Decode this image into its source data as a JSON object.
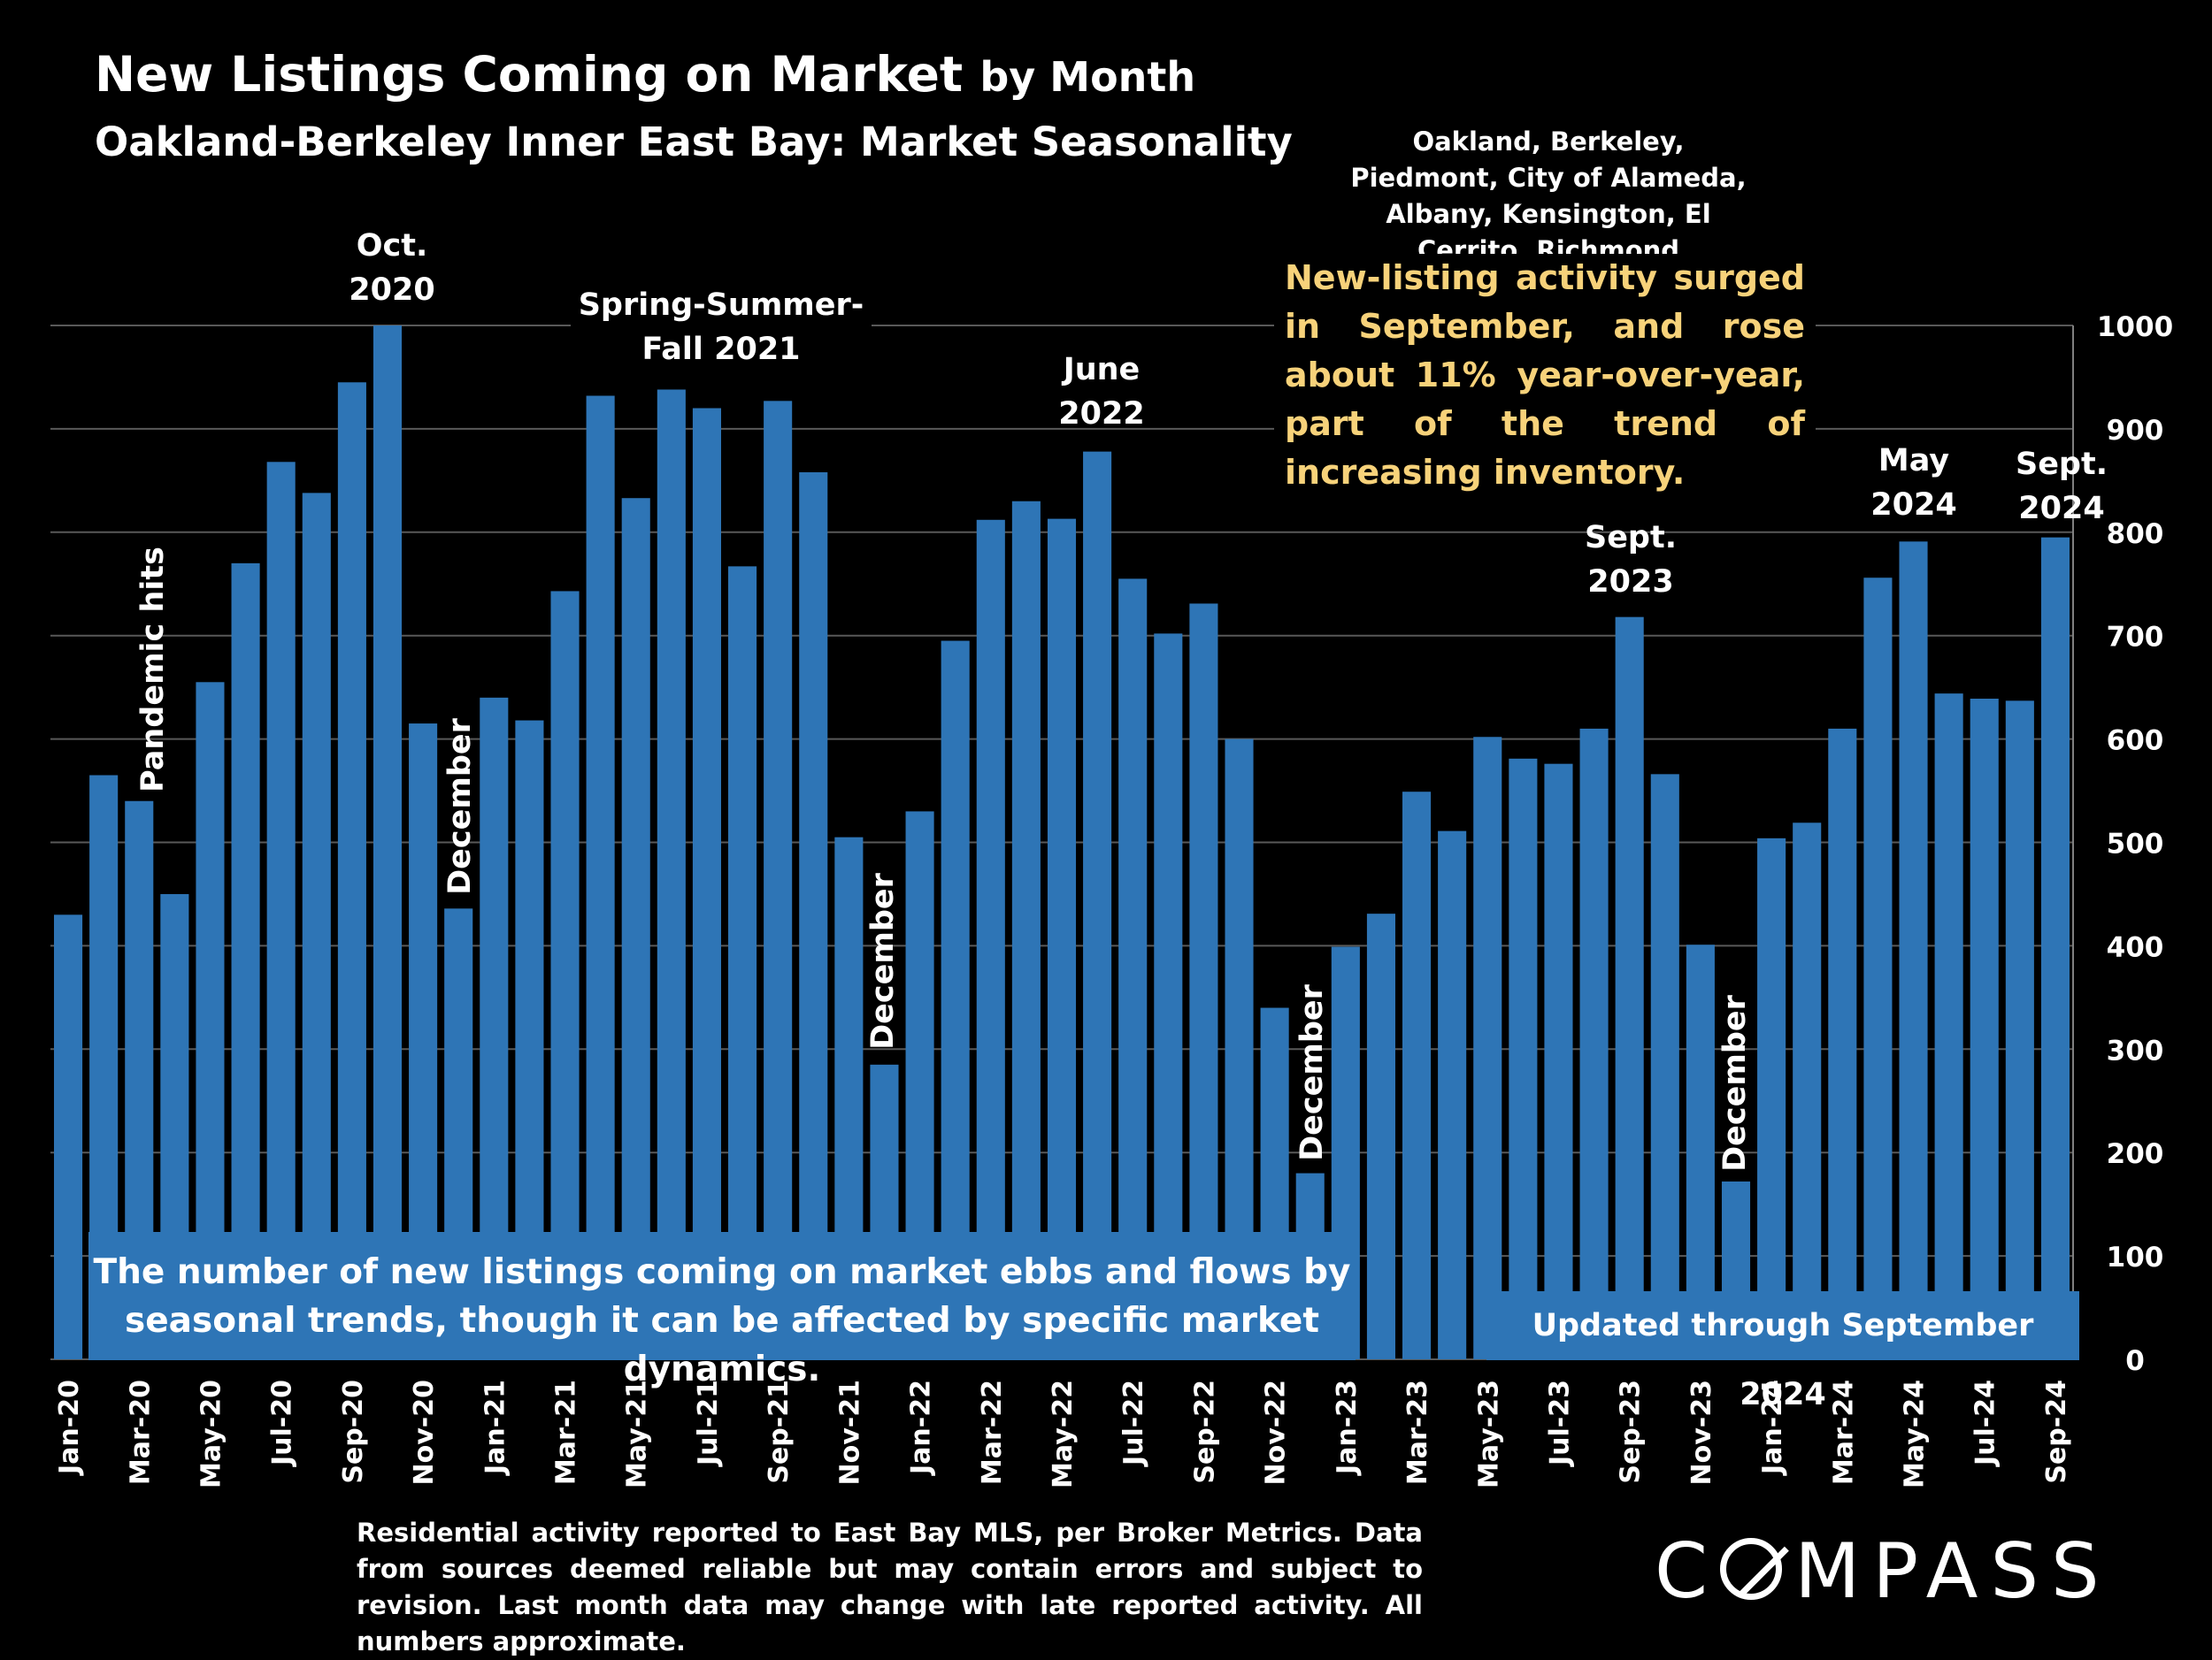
{
  "header": {
    "title_main": "New Listings Coming on Market",
    "title_suffix": "by Month",
    "subtitle": "Oakland-Berkeley Inner East Bay: Market Seasonality",
    "areas_line1": "Oakland, Berkeley, Piedmont, City of Alameda,",
    "areas_line2": "Albany, Kensington, El Cerrito, Richmond"
  },
  "commentary": "New-listing activity surged in September, and rose about 11% year-over-year, part of the trend of increasing inventory.",
  "note_box": {
    "line1": "The number of new listings coming on market ebbs and flows by",
    "line2": "seasonal trends, though it can be affected by specific market dynamics."
  },
  "updated": "Updated through September 2024",
  "footnote": "Residential activity reported to East Bay MLS, per Broker Metrics. Data from sources deemed reliable but may contain errors and subject to revision. Last month data may change with late reported activity. All numbers approximate.",
  "logo": {
    "text": "COMPASS"
  },
  "colors": {
    "bar": "#2e75b6",
    "commentary": "#f7d27a",
    "background": "#000000",
    "grid": "#595959"
  },
  "annotations": {
    "oct2020": [
      "Oct.",
      "2020"
    ],
    "ssf2021": [
      "Spring-Summer-",
      "Fall  2021"
    ],
    "june2022": [
      "June",
      "2022"
    ],
    "sept2023": [
      "Sept.",
      "2023"
    ],
    "may2024": [
      "May",
      "2024"
    ],
    "sept2024": [
      "Sept.",
      "2024"
    ],
    "pandemic": "Pandemic hits",
    "december": "December"
  },
  "chart_data": {
    "type": "bar",
    "categories": [
      "Jan-20",
      "Feb-20",
      "Mar-20",
      "Apr-20",
      "May-20",
      "Jun-20",
      "Jul-20",
      "Aug-20",
      "Sep-20",
      "Oct-20",
      "Nov-20",
      "Dec-20",
      "Jan-21",
      "Feb-21",
      "Mar-21",
      "Apr-21",
      "May-21",
      "Jun-21",
      "Jul-21",
      "Aug-21",
      "Sep-21",
      "Oct-21",
      "Nov-21",
      "Dec-21",
      "Jan-22",
      "Feb-22",
      "Mar-22",
      "Apr-22",
      "May-22",
      "Jun-22",
      "Jul-22",
      "Aug-22",
      "Sep-22",
      "Oct-22",
      "Nov-22",
      "Dec-22",
      "Jan-23",
      "Feb-23",
      "Mar-23",
      "Apr-23",
      "May-23",
      "Jun-23",
      "Jul-23",
      "Aug-23",
      "Sep-23",
      "Oct-23",
      "Nov-23",
      "Dec-23",
      "Jan-24",
      "Feb-24",
      "Mar-24",
      "Apr-24",
      "May-24",
      "Jun-24",
      "Jul-24",
      "Aug-24",
      "Sep-24"
    ],
    "x_tick_labels": [
      "Jan-20",
      "Mar-20",
      "May-20",
      "Jul-20",
      "Sep-20",
      "Nov-20",
      "Jan-21",
      "Mar-21",
      "May-21",
      "Jul-21",
      "Sep-21",
      "Nov-21",
      "Jan-22",
      "Mar-22",
      "May-22",
      "Jul-22",
      "Sep-22",
      "Nov-22",
      "Jan-23",
      "Mar-23",
      "May-23",
      "Jul-23",
      "Sep-23",
      "Nov-23",
      "Jan-24",
      "Mar-24",
      "May-24",
      "Jul-24",
      "Sep-24"
    ],
    "values": [
      430,
      565,
      540,
      450,
      655,
      770,
      868,
      838,
      945,
      1000,
      615,
      436,
      640,
      618,
      743,
      932,
      833,
      938,
      920,
      767,
      927,
      858,
      505,
      285,
      530,
      695,
      812,
      830,
      813,
      878,
      755,
      702,
      731,
      600,
      340,
      180,
      399,
      431,
      549,
      511,
      602,
      581,
      576,
      610,
      718,
      566,
      401,
      172,
      504,
      519,
      610,
      756,
      791,
      644,
      639,
      637,
      795
    ],
    "ylim": [
      0,
      1000
    ],
    "yticks": [
      0,
      100,
      200,
      300,
      400,
      500,
      600,
      700,
      800,
      900,
      1000
    ],
    "y_axis_side": "right",
    "grid": true,
    "legend": "none"
  }
}
